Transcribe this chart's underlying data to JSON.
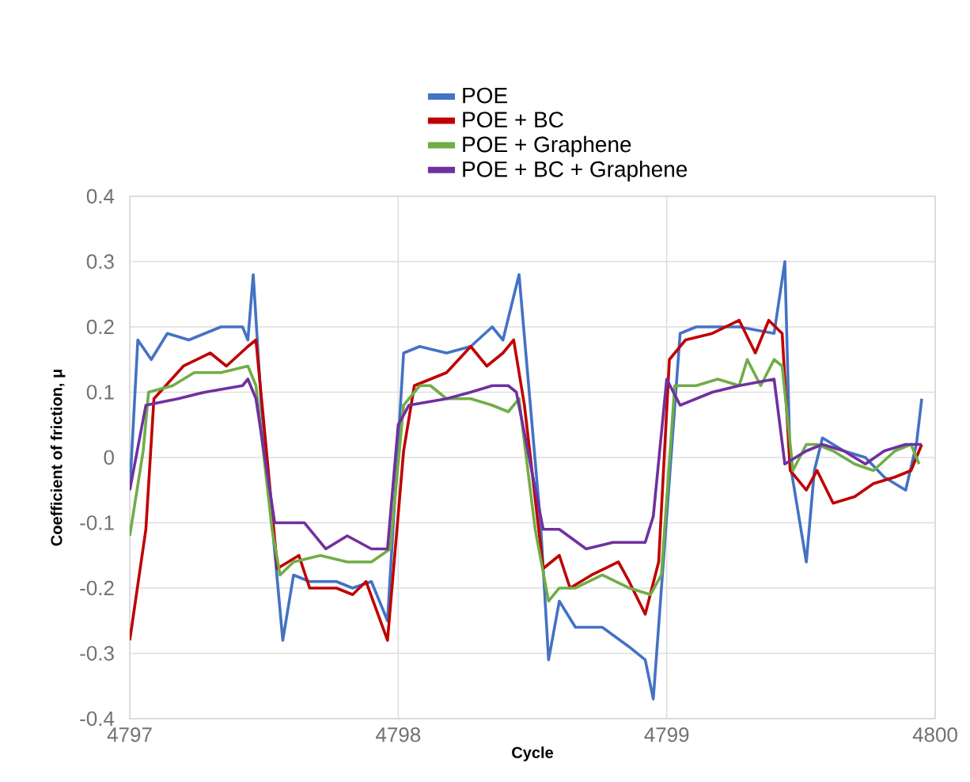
{
  "chart_data": {
    "type": "line",
    "xlabel": "Cycle",
    "ylabel": "Coefficient of friction, μ",
    "xlim": [
      4797,
      4800
    ],
    "xticks": [
      4797,
      4798,
      4799,
      4800
    ],
    "ylim": [
      -0.4,
      0.4
    ],
    "yticks": [
      -0.4,
      -0.3,
      -0.2,
      -0.1,
      0,
      0.1,
      0.2,
      0.3,
      0.4
    ],
    "grid": true,
    "legend": "top",
    "marker": "none",
    "line_style": "solid",
    "series": [
      {
        "name": "POE",
        "color": "#4472c4",
        "x": [
          4797,
          4797.03,
          4797.08,
          4797.14,
          4797.22,
          4797.34,
          4797.42,
          4797.44,
          4797.46,
          4797.49,
          4797.53,
          4797.57,
          4797.61,
          4797.67,
          4797.77,
          4797.83,
          4797.9,
          4797.96,
          4798.02,
          4798.08,
          4798.18,
          4798.27,
          4798.35,
          4798.39,
          4798.45,
          4798.53,
          4798.56,
          4798.6,
          4798.66,
          4798.76,
          4798.86,
          4798.92,
          4798.95,
          4799.05,
          4799.11,
          4799.27,
          4799.4,
          4799.44,
          4799.46,
          4799.52,
          4799.55,
          4799.58,
          4799.66,
          4799.74,
          4799.81,
          4799.89,
          4799.93,
          4799.95
        ],
        "values": [
          -0.05,
          0.18,
          0.15,
          0.19,
          0.18,
          0.2,
          0.2,
          0.18,
          0.28,
          0.08,
          -0.1,
          -0.28,
          -0.18,
          -0.19,
          -0.19,
          -0.2,
          -0.19,
          -0.25,
          0.16,
          0.17,
          0.16,
          0.17,
          0.2,
          0.18,
          0.28,
          -0.1,
          -0.31,
          -0.22,
          -0.26,
          -0.26,
          -0.29,
          -0.31,
          -0.37,
          0.19,
          0.2,
          0.2,
          0.19,
          0.3,
          -0.01,
          -0.16,
          -0.02,
          0.03,
          0.01,
          0,
          -0.03,
          -0.05,
          0.02,
          0.09
        ]
      },
      {
        "name": "POE + BC",
        "color": "#c00000",
        "x": [
          4797,
          4797.06,
          4797.09,
          4797.2,
          4797.3,
          4797.36,
          4797.44,
          4797.47,
          4797.5,
          4797.55,
          4797.63,
          4797.67,
          4797.77,
          4797.83,
          4797.88,
          4797.96,
          4798.02,
          4798.06,
          4798.18,
          4798.27,
          4798.33,
          4798.39,
          4798.43,
          4798.47,
          4798.54,
          4798.6,
          4798.64,
          4798.72,
          4798.82,
          4798.86,
          4798.92,
          4798.97,
          4799.01,
          4799.07,
          4799.17,
          4799.27,
          4799.33,
          4799.38,
          4799.43,
          4799.46,
          4799.52,
          4799.56,
          4799.62,
          4799.7,
          4799.77,
          4799.85,
          4799.91,
          4799.95
        ],
        "values": [
          -0.28,
          -0.11,
          0.09,
          0.14,
          0.16,
          0.14,
          0.17,
          0.18,
          0.05,
          -0.17,
          -0.15,
          -0.2,
          -0.2,
          -0.21,
          -0.19,
          -0.28,
          0.01,
          0.11,
          0.13,
          0.17,
          0.14,
          0.16,
          0.18,
          0.08,
          -0.17,
          -0.15,
          -0.2,
          -0.18,
          -0.16,
          -0.19,
          -0.24,
          -0.16,
          0.15,
          0.18,
          0.19,
          0.21,
          0.16,
          0.21,
          0.19,
          -0.02,
          -0.05,
          -0.02,
          -0.07,
          -0.06,
          -0.04,
          -0.03,
          -0.02,
          0.02
        ]
      },
      {
        "name": "POE + Graphene",
        "color": "#70ad47",
        "x": [
          4797,
          4797.05,
          4797.07,
          4797.16,
          4797.24,
          4797.34,
          4797.44,
          4797.47,
          4797.53,
          4797.56,
          4797.61,
          4797.71,
          4797.81,
          4797.9,
          4797.97,
          4798.02,
          4798.08,
          4798.12,
          4798.18,
          4798.27,
          4798.35,
          4798.41,
          4798.45,
          4798.51,
          4798.56,
          4798.6,
          4798.66,
          4798.76,
          4798.86,
          4798.94,
          4798.98,
          4799.03,
          4799.11,
          4799.19,
          4799.27,
          4799.3,
          4799.35,
          4799.4,
          4799.43,
          4799.47,
          4799.52,
          4799.56,
          4799.62,
          4799.7,
          4799.77,
          4799.85,
          4799.91,
          4799.94
        ],
        "values": [
          -0.12,
          0.01,
          0.1,
          0.11,
          0.13,
          0.13,
          0.14,
          0.11,
          -0.11,
          -0.18,
          -0.16,
          -0.15,
          -0.16,
          -0.16,
          -0.14,
          0.08,
          0.11,
          0.11,
          0.09,
          0.09,
          0.08,
          0.07,
          0.09,
          -0.11,
          -0.22,
          -0.2,
          -0.2,
          -0.18,
          -0.2,
          -0.21,
          -0.18,
          0.11,
          0.11,
          0.12,
          0.11,
          0.15,
          0.11,
          0.15,
          0.14,
          -0.02,
          0.02,
          0.02,
          0.01,
          -0.01,
          -0.02,
          0.01,
          0.02,
          -0.01
        ]
      },
      {
        "name": "POE + BC + Graphene",
        "color": "#7030a0",
        "x": [
          4797,
          4797.06,
          4797.18,
          4797.28,
          4797.42,
          4797.44,
          4797.47,
          4797.54,
          4797.65,
          4797.73,
          4797.81,
          4797.9,
          4797.96,
          4798,
          4798.04,
          4798.18,
          4798.27,
          4798.35,
          4798.41,
          4798.44,
          4798.54,
          4798.6,
          4798.7,
          4798.8,
          4798.92,
          4798.95,
          4799,
          4799.05,
          4799.17,
          4799.27,
          4799.4,
          4799.44,
          4799.52,
          4799.58,
          4799.66,
          4799.74,
          4799.81,
          4799.89,
          4799.95
        ],
        "values": [
          -0.05,
          0.08,
          0.09,
          0.1,
          0.11,
          0.12,
          0.09,
          -0.1,
          -0.1,
          -0.14,
          -0.12,
          -0.14,
          -0.14,
          0.05,
          0.08,
          0.09,
          0.1,
          0.11,
          0.11,
          0.1,
          -0.11,
          -0.11,
          -0.14,
          -0.13,
          -0.13,
          -0.09,
          0.12,
          0.08,
          0.1,
          0.11,
          0.12,
          -0.01,
          0.01,
          0.02,
          0.01,
          -0.01,
          0.01,
          0.02,
          0.02
        ]
      }
    ]
  }
}
